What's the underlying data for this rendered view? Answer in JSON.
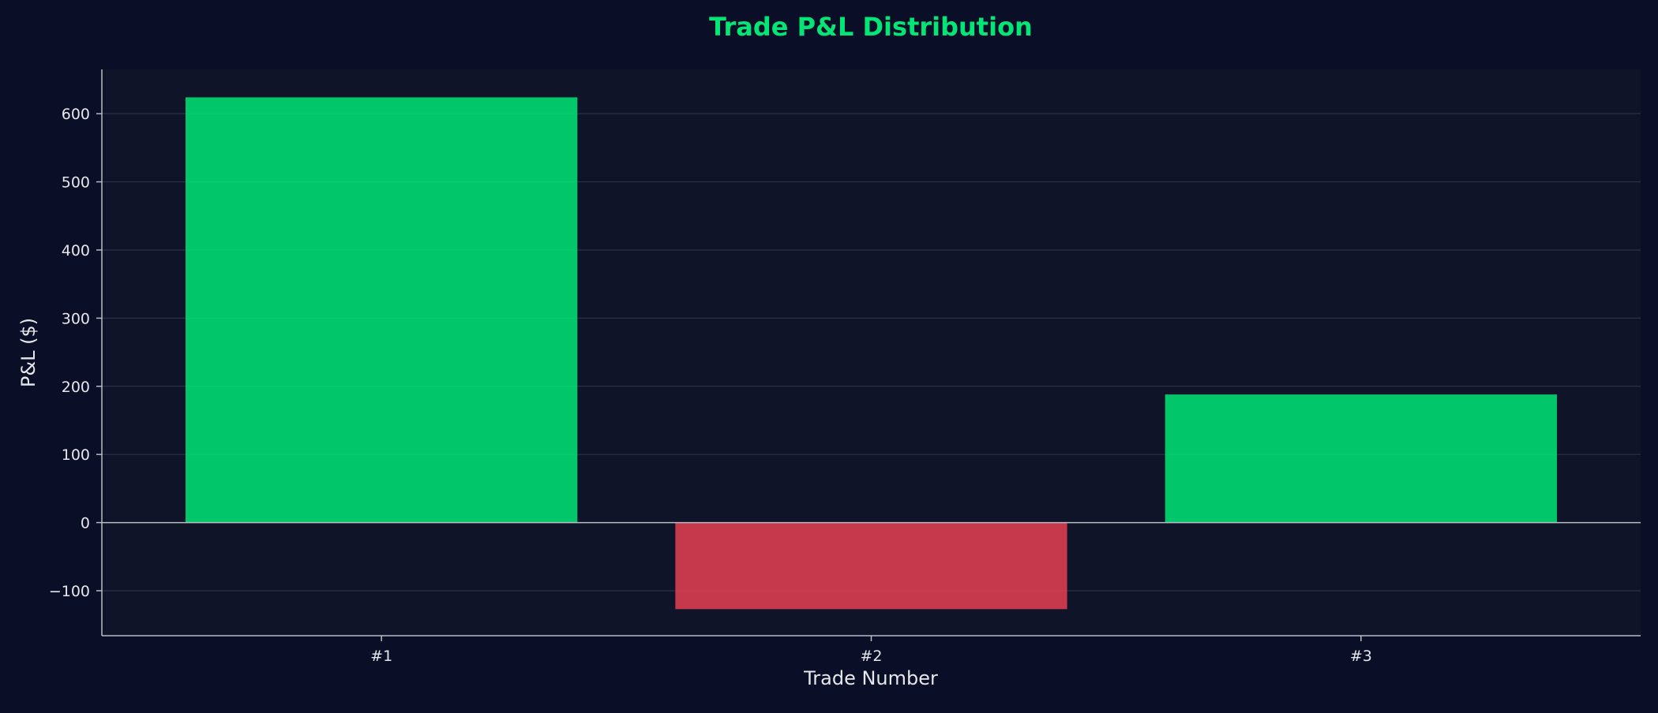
{
  "chart_data": {
    "type": "bar",
    "title": "Trade P&L Distribution",
    "xlabel": "Trade Number",
    "ylabel": "P&L ($)",
    "categories": [
      "#1",
      "#2",
      "#3"
    ],
    "values": [
      624,
      -127,
      188
    ],
    "ylim": [
      -166,
      665
    ],
    "yticks": [
      {
        "value": -100,
        "label": "−100"
      },
      {
        "value": 0,
        "label": "0"
      },
      {
        "value": 100,
        "label": "100"
      },
      {
        "value": 200,
        "label": "200"
      },
      {
        "value": 300,
        "label": "300"
      },
      {
        "value": 400,
        "label": "400"
      },
      {
        "value": 500,
        "label": "500"
      },
      {
        "value": 600,
        "label": "600"
      }
    ],
    "grid": true,
    "legend": "none",
    "colors": {
      "positive": "#00e676",
      "negative": "#e63e52",
      "title": "#00e676",
      "background": "#0a0e27",
      "plot_background": "#0f1429",
      "grid": "#2a3148",
      "axis": "#b9bcc6",
      "text": "#e6e7eb"
    }
  }
}
